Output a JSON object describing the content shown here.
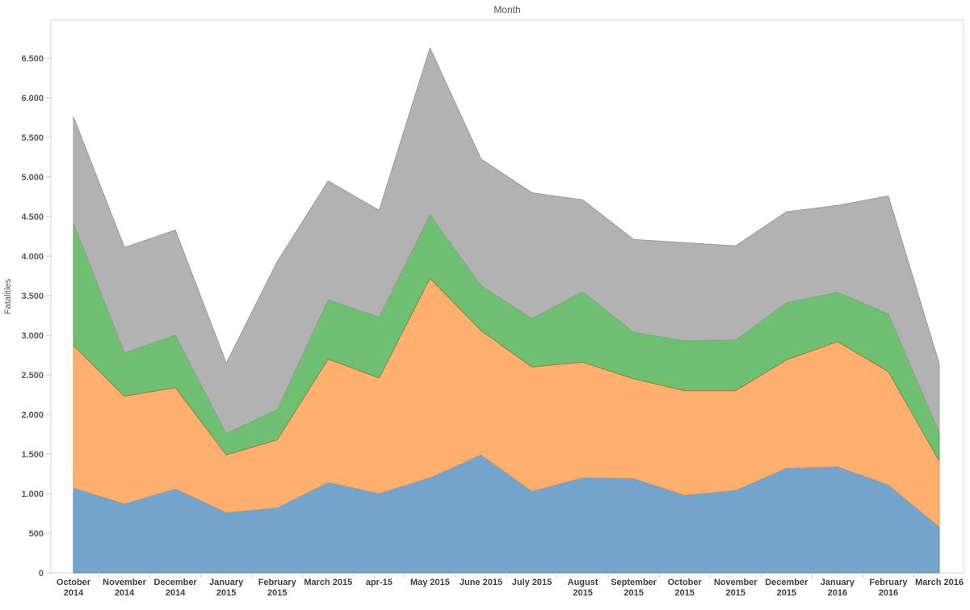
{
  "window": {
    "background": "#ffffff"
  },
  "chart_data": {
    "type": "area",
    "stacked": true,
    "title": "Month",
    "xlabel": "",
    "ylabel": "Fatalities",
    "grid": false,
    "legend": "none",
    "ylim": [
      0,
      6500
    ],
    "ytick_step": 500,
    "ytick_labels": [
      "0",
      "500",
      "1.000",
      "1.500",
      "2.000",
      "2.500",
      "3.000",
      "3.500",
      "4.000",
      "4.500",
      "5.000",
      "5.500",
      "6.000",
      "6.500"
    ],
    "categories": [
      "October 2014",
      "November 2014",
      "December 2014",
      "January 2015",
      "February 2015",
      "March 2015",
      "apr-15",
      "May 2015",
      "June 2015",
      "July 2015",
      "August 2015",
      "September 2015",
      "October 2015",
      "November 2015",
      "December 2015",
      "January 2016",
      "February 2016",
      "March 2016"
    ],
    "series": [
      {
        "name": "series-1-blue",
        "color": "#74A3CC",
        "stroke": "#5687B2",
        "values": [
          1070,
          870,
          1060,
          760,
          820,
          1140,
          1000,
          1200,
          1490,
          1030,
          1200,
          1190,
          980,
          1040,
          1320,
          1340,
          1110,
          580
        ]
      },
      {
        "name": "series-2-orange",
        "color": "#FFB06E",
        "stroke": "#F28D37",
        "values": [
          1800,
          1360,
          1280,
          730,
          860,
          1560,
          1460,
          2520,
          1570,
          1570,
          1460,
          1260,
          1320,
          1260,
          1370,
          1580,
          1430,
          830
        ]
      },
      {
        "name": "series-3-green",
        "color": "#6EBF71",
        "stroke": "#4FA254",
        "values": [
          1550,
          550,
          660,
          270,
          380,
          750,
          770,
          800,
          570,
          610,
          890,
          590,
          630,
          640,
          720,
          625,
          730,
          360
        ]
      },
      {
        "name": "series-4-gray",
        "color": "#B2B2B2",
        "stroke": "#9B9B9B",
        "values": [
          1340,
          1330,
          1330,
          890,
          1870,
          1500,
          1350,
          2110,
          1600,
          1590,
          1160,
          1170,
          1240,
          1190,
          1150,
          1095,
          1490,
          870
        ]
      }
    ],
    "stacked_totals": [
      5760,
      4110,
      4330,
      2650,
      3930,
      4950,
      4580,
      6630,
      5230,
      4800,
      4710,
      4210,
      4170,
      4130,
      4560,
      4640,
      4760,
      2640
    ]
  },
  "axes_style": {
    "plot_border_color": "#D5D5D5",
    "tick_color": "#C7C7C7",
    "x_label_color": "#3F3F3F",
    "y_label_color": "#5A5A5A",
    "title_color": "#565656"
  }
}
